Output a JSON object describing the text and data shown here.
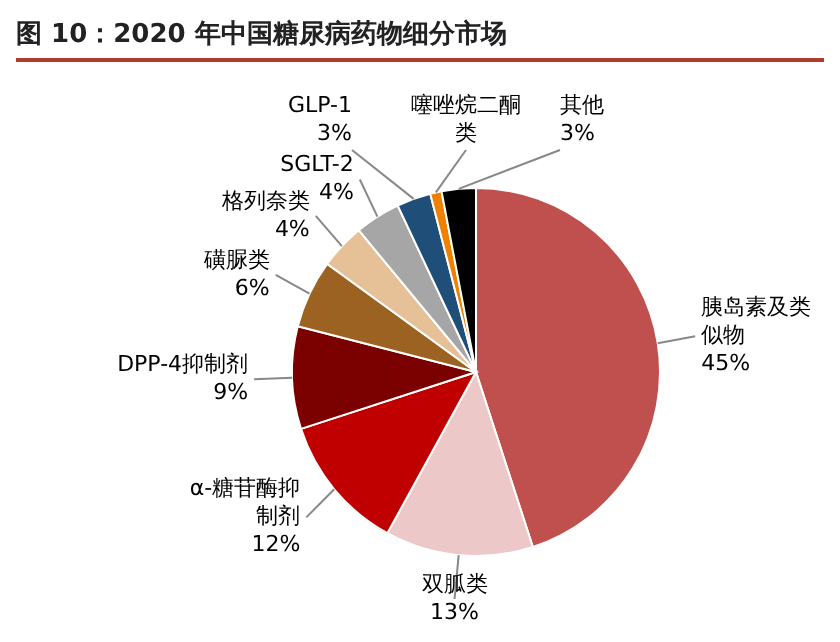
{
  "chart_data": {
    "type": "pie",
    "title": "图 10：2020 年中国糖尿病药物细分市场",
    "categories": [
      "胰岛素及类似物",
      "双胍类",
      "α-糖苷酶抑制剂",
      "DPP-4抑制剂",
      "磺脲类",
      "格列奈类",
      "SGLT-2",
      "GLP-1",
      "噻唑烷二酮类",
      "其他"
    ],
    "values": [
      45,
      13,
      12,
      9,
      6,
      4,
      4,
      3,
      1,
      3
    ],
    "value_labels": [
      "45%",
      "13%",
      "12%",
      "9%",
      "6%",
      "4%",
      "4%",
      "3%",
      null,
      "3%"
    ],
    "colors": [
      "#c0504d",
      "#ecc8c8",
      "#c00000",
      "#7b0000",
      "#9c6221",
      "#e6c096",
      "#a6a6a6",
      "#1f4e79",
      "#f08000",
      "#000000"
    ],
    "legend": false
  }
}
